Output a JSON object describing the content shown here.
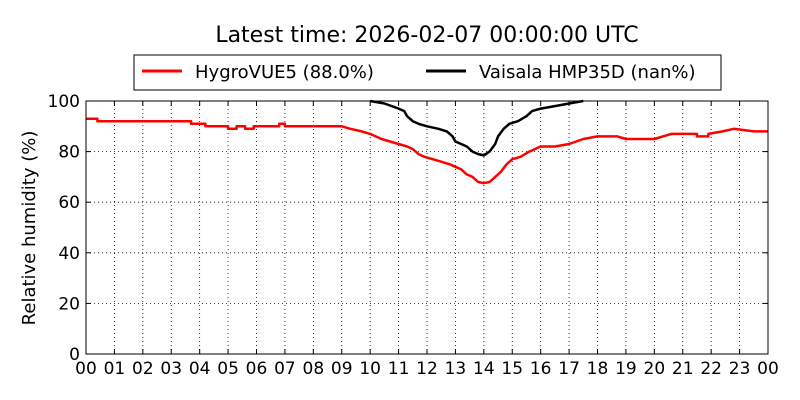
{
  "chart_data": {
    "type": "line",
    "title": "Latest time: 2026-02-07 00:00:00 UTC",
    "xlabel": "",
    "ylabel": "Relative humidity (%)",
    "xlim": [
      0,
      24
    ],
    "ylim": [
      0,
      100
    ],
    "grid": true,
    "legend_placement": "top-center",
    "x_ticks": [
      "00",
      "01",
      "02",
      "03",
      "04",
      "05",
      "06",
      "07",
      "08",
      "09",
      "10",
      "11",
      "12",
      "13",
      "14",
      "15",
      "16",
      "17",
      "18",
      "19",
      "20",
      "21",
      "22",
      "23",
      "00"
    ],
    "y_ticks": [
      "0",
      "20",
      "40",
      "60",
      "80",
      "100"
    ],
    "series": [
      {
        "name": "HygroVUE5 (88.0%)",
        "color": "#ff0000",
        "points": [
          [
            0,
            93
          ],
          [
            0.4,
            93
          ],
          [
            0.4,
            92
          ],
          [
            3.7,
            92
          ],
          [
            3.7,
            91
          ],
          [
            4.2,
            91
          ],
          [
            4.2,
            90
          ],
          [
            5.0,
            90
          ],
          [
            5.0,
            89
          ],
          [
            5.3,
            89
          ],
          [
            5.3,
            90
          ],
          [
            5.6,
            90
          ],
          [
            5.6,
            89
          ],
          [
            5.9,
            89
          ],
          [
            5.9,
            90
          ],
          [
            6.8,
            90
          ],
          [
            6.8,
            91
          ],
          [
            7.0,
            91
          ],
          [
            7.0,
            90
          ],
          [
            9.0,
            90
          ],
          [
            9.3,
            89
          ],
          [
            9.7,
            88
          ],
          [
            10.0,
            87
          ],
          [
            10.2,
            86
          ],
          [
            10.4,
            85
          ],
          [
            10.7,
            84
          ],
          [
            11.0,
            83
          ],
          [
            11.3,
            82
          ],
          [
            11.5,
            81
          ],
          [
            11.7,
            79
          ],
          [
            11.9,
            78
          ],
          [
            12.2,
            77
          ],
          [
            12.5,
            76
          ],
          [
            12.8,
            75
          ],
          [
            13.0,
            74
          ],
          [
            13.2,
            73
          ],
          [
            13.4,
            71
          ],
          [
            13.6,
            70
          ],
          [
            13.8,
            68
          ],
          [
            14.0,
            67.5
          ],
          [
            14.2,
            68
          ],
          [
            14.4,
            70
          ],
          [
            14.6,
            72
          ],
          [
            14.8,
            75
          ],
          [
            15.0,
            77
          ],
          [
            15.3,
            78
          ],
          [
            15.6,
            80
          ],
          [
            16.0,
            82
          ],
          [
            16.5,
            82
          ],
          [
            17.0,
            83
          ],
          [
            17.5,
            85
          ],
          [
            18.0,
            86
          ],
          [
            18.7,
            86
          ],
          [
            19.0,
            85
          ],
          [
            20.0,
            85
          ],
          [
            20.3,
            86
          ],
          [
            20.6,
            87
          ],
          [
            21.5,
            87
          ],
          [
            21.5,
            86
          ],
          [
            21.9,
            86
          ],
          [
            21.9,
            87
          ],
          [
            22.4,
            88
          ],
          [
            22.8,
            89
          ],
          [
            23.5,
            88
          ],
          [
            24,
            88
          ]
        ]
      },
      {
        "name": "Vaisala HMP35D (nan%)",
        "color": "#000000",
        "points": [
          [
            10.0,
            100
          ],
          [
            10.5,
            99
          ],
          [
            11.0,
            97
          ],
          [
            11.2,
            96
          ],
          [
            11.3,
            94
          ],
          [
            11.5,
            92
          ],
          [
            11.7,
            91
          ],
          [
            12.0,
            90
          ],
          [
            12.4,
            89
          ],
          [
            12.7,
            88
          ],
          [
            12.9,
            86
          ],
          [
            13.0,
            84
          ],
          [
            13.2,
            83
          ],
          [
            13.4,
            82
          ],
          [
            13.6,
            80
          ],
          [
            13.8,
            79
          ],
          [
            14.0,
            78.5
          ],
          [
            14.2,
            80
          ],
          [
            14.4,
            83
          ],
          [
            14.5,
            86
          ],
          [
            14.7,
            89
          ],
          [
            14.9,
            91
          ],
          [
            15.2,
            92
          ],
          [
            15.5,
            94
          ],
          [
            15.7,
            96
          ],
          [
            16.0,
            97
          ],
          [
            16.5,
            98
          ],
          [
            17.0,
            99
          ],
          [
            17.5,
            100
          ]
        ]
      }
    ]
  }
}
